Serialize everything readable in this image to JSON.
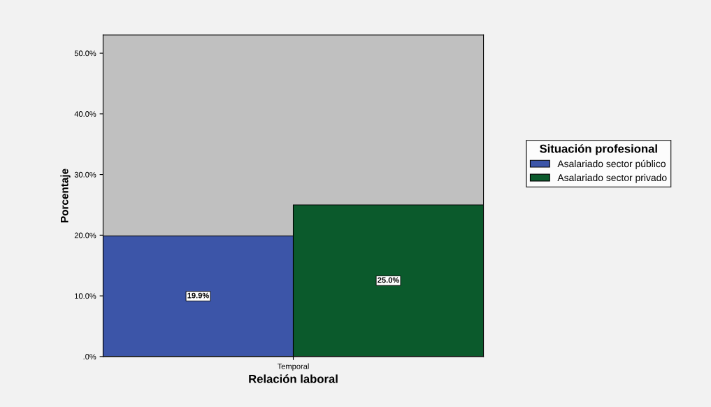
{
  "chart_data": {
    "type": "bar",
    "xlabel": "Relación laboral",
    "ylabel": "Porcentaje",
    "legend_title": "Situación profesional",
    "categories": [
      "Temporal"
    ],
    "series": [
      {
        "name": "Asalariado sector público",
        "color": "#3c55a8",
        "values": [
          19.9
        ],
        "value_labels": [
          "19.9%"
        ]
      },
      {
        "name": "Asalariado sector privado",
        "color": "#0b5a2c",
        "values": [
          25.0
        ],
        "value_labels": [
          "25.0%"
        ]
      }
    ],
    "ylim": [
      0,
      53
    ],
    "yticks": [
      {
        "value": 0,
        "label": ".0%"
      },
      {
        "value": 10,
        "label": "10.0%"
      },
      {
        "value": 20,
        "label": "20.0%"
      },
      {
        "value": 30,
        "label": "30.0%"
      },
      {
        "value": 40,
        "label": "40.0%"
      },
      {
        "value": 50,
        "label": "50.0%"
      }
    ],
    "grid": false,
    "legend": "right"
  }
}
